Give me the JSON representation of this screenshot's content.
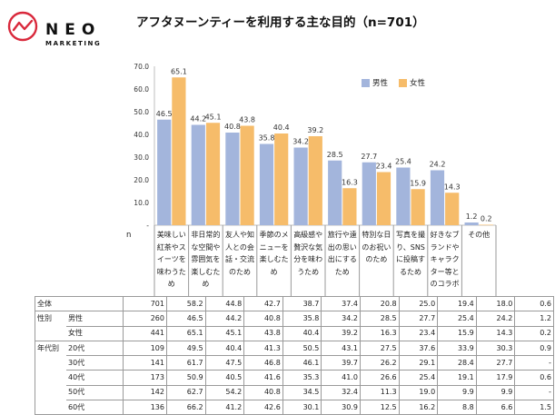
{
  "brand": {
    "name": "NEO",
    "sub": "MARKETING"
  },
  "title": "アフタヌーンティーを利用する主な目的（n=701）",
  "legend": {
    "male": "男性",
    "female": "女性"
  },
  "colors": {
    "male": "#a3b5dc",
    "female": "#f6bc6a",
    "axis": "#bfbfbf",
    "logo_red": "#d9293c"
  },
  "chart_data": {
    "type": "bar",
    "title": "アフタヌーンティーを利用する主な目的（n=701）",
    "ylim": [
      0,
      70
    ],
    "yticks": [
      "70.0",
      "60.0",
      "50.0",
      "40.0",
      "30.0",
      "20.0",
      "10.0",
      "-"
    ],
    "categories": [
      "美味しい紅茶やスイーツを味わうため",
      "非日常的な空間や雰囲気を楽しむため",
      "友人や知人との会話・交流のため",
      "季節のメニューを楽しむため",
      "高級感や贅沢な気分を味わうため",
      "旅行や遠出の思い出にするため",
      "特別な日のお祝いのため",
      "写真を撮り、SNSに投稿するため",
      "好きなブランドやキャラクター等とのコラボ",
      "その他"
    ],
    "category_lines": [
      [
        "美味しい",
        "紅茶やス",
        "イーツを",
        "味わうた",
        "め"
      ],
      [
        "非日常的",
        "な空間や",
        "雰囲気を",
        "楽しむた",
        "め"
      ],
      [
        "友人や知",
        "人との会",
        "話・交流",
        "のため"
      ],
      [
        "季節のメ",
        "ニューを",
        "楽しむた",
        "め"
      ],
      [
        "高級感や",
        "贅沢な気",
        "分を味わ",
        "うため"
      ],
      [
        "旅行や遠",
        "出の思い",
        "出にする",
        "ため"
      ],
      [
        "特別な日",
        "のお祝い",
        "のため"
      ],
      [
        "写真を撮",
        "り、SNS",
        "に投稿す",
        "るため"
      ],
      [
        "好きなブ",
        "ランドや",
        "キャラク",
        "ター等と",
        "のコラボ"
      ],
      [
        "その他"
      ]
    ],
    "series": [
      {
        "name": "男性",
        "values": [
          46.5,
          44.2,
          40.8,
          35.8,
          34.2,
          28.5,
          27.7,
          25.4,
          24.2,
          1.2
        ]
      },
      {
        "name": "女性",
        "values": [
          65.1,
          45.1,
          43.8,
          40.4,
          39.2,
          16.3,
          23.4,
          15.9,
          14.3,
          0.2
        ]
      }
    ],
    "value_labels": {
      "male": [
        "46.5",
        "44.2",
        "40.8",
        "35.8",
        "34.2",
        "28.5",
        "27.7",
        "25.4",
        "24.2",
        "1.2"
      ],
      "female": [
        "65.1",
        "45.1",
        "43.8",
        "40.4",
        "39.2",
        "16.3",
        "23.4",
        "15.9",
        "14.3",
        "0.2"
      ]
    },
    "table": {
      "n_header": "n",
      "rows": [
        {
          "group": "全体",
          "label": "",
          "n": "701",
          "values": [
            "58.2",
            "44.8",
            "42.7",
            "38.7",
            "37.4",
            "20.8",
            "25.0",
            "19.4",
            "18.0",
            "0.6"
          ]
        },
        {
          "group": "性別",
          "label": "男性",
          "n": "260",
          "values": [
            "46.5",
            "44.2",
            "40.8",
            "35.8",
            "34.2",
            "28.5",
            "27.7",
            "25.4",
            "24.2",
            "1.2"
          ]
        },
        {
          "group": "",
          "label": "女性",
          "n": "441",
          "values": [
            "65.1",
            "45.1",
            "43.8",
            "40.4",
            "39.2",
            "16.3",
            "23.4",
            "15.9",
            "14.3",
            "0.2"
          ]
        },
        {
          "group": "年代別",
          "label": "20代",
          "n": "109",
          "values": [
            "49.5",
            "40.4",
            "41.3",
            "50.5",
            "43.1",
            "27.5",
            "37.6",
            "33.9",
            "30.3",
            "0.9"
          ]
        },
        {
          "group": "",
          "label": "30代",
          "n": "141",
          "values": [
            "61.7",
            "47.5",
            "46.8",
            "46.1",
            "39.7",
            "26.2",
            "29.1",
            "28.4",
            "27.7",
            "-"
          ]
        },
        {
          "group": "",
          "label": "40代",
          "n": "173",
          "values": [
            "50.9",
            "40.5",
            "41.6",
            "35.3",
            "41.0",
            "26.6",
            "25.4",
            "19.1",
            "17.9",
            "0.6"
          ]
        },
        {
          "group": "",
          "label": "50代",
          "n": "142",
          "values": [
            "62.7",
            "54.2",
            "40.8",
            "34.5",
            "32.4",
            "11.3",
            "19.0",
            "9.9",
            "9.9",
            "-"
          ]
        },
        {
          "group": "",
          "label": "60代",
          "n": "136",
          "values": [
            "66.2",
            "41.2",
            "42.6",
            "30.1",
            "30.9",
            "12.5",
            "16.2",
            "8.8",
            "6.6",
            "1.5"
          ]
        }
      ]
    }
  }
}
